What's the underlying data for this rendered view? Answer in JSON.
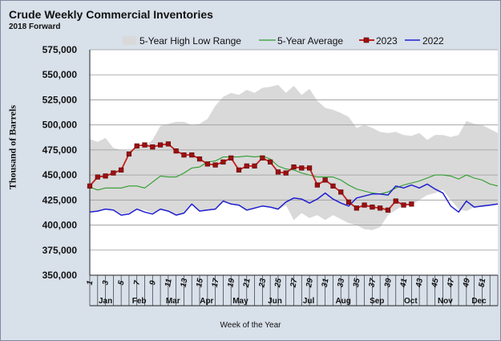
{
  "chart_data": {
    "type": "line",
    "title": "Crude Weekly Commercial  Inventories",
    "subtitle": "2018 Forward",
    "ylabel": "Thousand of Barrels",
    "xlabel": "Week of the Year",
    "ylim": [
      350000,
      575000
    ],
    "yticks": [
      350000,
      375000,
      400000,
      425000,
      450000,
      475000,
      500000,
      525000,
      550000,
      575000
    ],
    "ytick_labels": [
      "350,000",
      "375,000",
      "400,000",
      "425,000",
      "450,000",
      "475,000",
      "500,000",
      "525,000",
      "550,000",
      "575,000"
    ],
    "xlim": [
      1,
      53
    ],
    "xticks": [
      1,
      3,
      5,
      7,
      9,
      11,
      13,
      15,
      17,
      19,
      21,
      23,
      25,
      27,
      29,
      31,
      33,
      35,
      37,
      39,
      41,
      43,
      45,
      47,
      49,
      51
    ],
    "xtick_labels": [
      "1",
      "3",
      "5",
      "7",
      "9",
      "11",
      "13",
      "15",
      "17",
      "19",
      "21",
      "23",
      "25",
      "27",
      "29",
      "31",
      "33",
      "35",
      "37",
      "39",
      "41",
      "43",
      "45",
      "47",
      "49",
      "51"
    ],
    "months": [
      {
        "label": "Jan",
        "week": 3
      },
      {
        "label": "Feb",
        "week": 7.3
      },
      {
        "label": "Mar",
        "week": 11.6
      },
      {
        "label": "Apr",
        "week": 15.9
      },
      {
        "label": "May",
        "week": 20.2
      },
      {
        "label": "Jun",
        "week": 24.6
      },
      {
        "label": "Jul",
        "week": 28.9
      },
      {
        "label": "Aug",
        "week": 33.3
      },
      {
        "label": "Sep",
        "week": 37.6
      },
      {
        "label": "Oct",
        "week": 41.9
      },
      {
        "label": "Nov",
        "week": 46.3
      },
      {
        "label": "Dec",
        "week": 50.6
      }
    ],
    "grid": true,
    "legend_position": "top",
    "range": {
      "name": "5-Year High Low Range",
      "color": "#d9d9d9",
      "x": [
        1,
        2,
        3,
        4,
        5,
        6,
        7,
        8,
        9,
        10,
        11,
        12,
        13,
        14,
        15,
        16,
        17,
        18,
        19,
        20,
        21,
        22,
        23,
        24,
        25,
        26,
        27,
        28,
        29,
        30,
        31,
        32,
        33,
        34,
        35,
        36,
        37,
        38,
        39,
        40,
        41,
        42,
        43,
        44,
        45,
        46,
        47,
        48,
        49,
        50,
        51,
        52,
        53
      ],
      "high": [
        486000,
        483000,
        487000,
        477000,
        475000,
        474000,
        478000,
        478000,
        485000,
        499000,
        501000,
        503000,
        503000,
        500000,
        501000,
        506000,
        519000,
        528000,
        532000,
        530000,
        535000,
        532000,
        537000,
        538000,
        540000,
        532000,
        539000,
        530000,
        536000,
        524000,
        517000,
        515000,
        512000,
        508000,
        497000,
        500000,
        497000,
        493000,
        492000,
        493000,
        490000,
        489000,
        492000,
        485000,
        490000,
        490000,
        488000,
        490000,
        504000,
        501000,
        500000,
        496000,
        492000
      ],
      "low": [
        414000,
        414000,
        416000,
        416000,
        411000,
        412000,
        416000,
        415000,
        412000,
        416000,
        414000,
        410000,
        412000,
        421000,
        414000,
        415000,
        416000,
        423000,
        421000,
        419000,
        414000,
        416000,
        419000,
        418000,
        415000,
        420000,
        405000,
        412000,
        407000,
        410000,
        405000,
        410000,
        406000,
        402000,
        400000,
        396000,
        395000,
        398000,
        410000,
        415000,
        420000,
        420000,
        425000,
        430000,
        432000,
        435000,
        425000,
        416000,
        414000,
        418000,
        418000,
        419000,
        421000
      ]
    },
    "series": [
      {
        "name": "5-Year Average",
        "color": "#2e9d2e",
        "x": [
          1,
          2,
          3,
          4,
          5,
          6,
          7,
          8,
          9,
          10,
          11,
          12,
          13,
          14,
          15,
          16,
          17,
          18,
          19,
          20,
          21,
          22,
          23,
          24,
          25,
          26,
          27,
          28,
          29,
          30,
          31,
          32,
          33,
          34,
          35,
          36,
          37,
          38,
          39,
          40,
          41,
          42,
          43,
          44,
          45,
          46,
          47,
          48,
          49,
          50,
          51,
          52,
          53
        ],
        "values": [
          438000,
          435000,
          437000,
          437000,
          437000,
          439000,
          439000,
          437000,
          443000,
          449000,
          448000,
          448000,
          452000,
          457000,
          458000,
          463000,
          464000,
          468000,
          468000,
          468000,
          469000,
          468000,
          469000,
          466000,
          459000,
          456000,
          455000,
          452000,
          450000,
          448000,
          448000,
          448000,
          445000,
          440000,
          436000,
          434000,
          432000,
          431000,
          433000,
          437000,
          440000,
          442000,
          444000,
          447000,
          450000,
          450000,
          449000,
          446000,
          450000,
          447000,
          445000,
          441000,
          439000
        ]
      },
      {
        "name": "2023",
        "color": "#c41e1e",
        "marker_color": "#9b1010",
        "x": [
          1,
          2,
          3,
          4,
          5,
          6,
          7,
          8,
          9,
          10,
          11,
          12,
          13,
          14,
          15,
          16,
          17,
          18,
          19,
          20,
          21,
          22,
          23,
          24,
          25,
          26,
          27,
          28,
          29,
          30,
          31,
          32,
          33,
          34,
          35,
          36,
          37,
          38,
          39,
          40,
          41,
          42
        ],
        "values": [
          439000,
          448000,
          449000,
          452000,
          455000,
          471000,
          479000,
          480000,
          478000,
          480000,
          481000,
          474000,
          470000,
          470000,
          466000,
          461000,
          460000,
          463000,
          467000,
          455000,
          459000,
          459000,
          467000,
          463000,
          453000,
          452000,
          458000,
          457000,
          457000,
          440000,
          445000,
          439000,
          433000,
          423000,
          417000,
          420000,
          418000,
          417000,
          415000,
          424000,
          420000,
          421000
        ]
      },
      {
        "name": "2022",
        "color": "#1f1fcf",
        "x": [
          1,
          2,
          3,
          4,
          5,
          6,
          7,
          8,
          9,
          10,
          11,
          12,
          13,
          14,
          15,
          16,
          17,
          18,
          19,
          20,
          21,
          22,
          23,
          24,
          25,
          26,
          27,
          28,
          29,
          30,
          31,
          32,
          33,
          34,
          35,
          36,
          37,
          38,
          39,
          40,
          41,
          42,
          43,
          44,
          45,
          46,
          47,
          48,
          49,
          50,
          51,
          52,
          53
        ],
        "values": [
          413000,
          414000,
          416000,
          415000,
          410000,
          411000,
          416000,
          413000,
          411000,
          416000,
          414000,
          410000,
          412000,
          421000,
          414000,
          415000,
          416000,
          424000,
          421000,
          420000,
          415000,
          417000,
          419000,
          418000,
          416000,
          423000,
          427000,
          426000,
          422000,
          426000,
          432000,
          426000,
          422000,
          419000,
          427000,
          429000,
          431000,
          431000,
          430000,
          439000,
          437000,
          440000,
          437000,
          441000,
          436000,
          432000,
          419000,
          413000,
          424000,
          418000,
          419000,
          420000,
          421000
        ]
      }
    ]
  }
}
